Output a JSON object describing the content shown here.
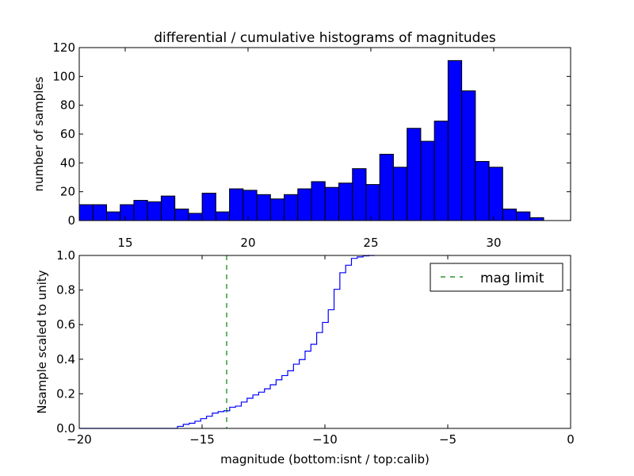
{
  "chart_data": [
    {
      "type": "bar",
      "title": "differential / cumulative histograms of magnitudes",
      "xlabel": "",
      "ylabel": "number of samples",
      "xlim": [
        13.13,
        33.13
      ],
      "ylim": [
        0,
        120
      ],
      "xticks": [
        15,
        20,
        25,
        30
      ],
      "yticks": [
        0,
        20,
        40,
        60,
        80,
        100,
        120
      ],
      "bin_start": 13.13,
      "bin_width": 0.556,
      "values": [
        11,
        11,
        6,
        11,
        14,
        13,
        17,
        8,
        5,
        19,
        6,
        22,
        21,
        18,
        15,
        18,
        22,
        27,
        23,
        26,
        36,
        25,
        46,
        37,
        64,
        55,
        69,
        111,
        90,
        41,
        37,
        8,
        6,
        2
      ],
      "color": "#0000ff"
    },
    {
      "type": "line",
      "xlabel": "magnitude (bottom:isnt / top:calib)",
      "ylabel": "Nsample scaled to unity",
      "xlim": [
        -20,
        0
      ],
      "ylim": [
        0,
        1
      ],
      "xticks": [
        -20,
        -15,
        -10,
        -5,
        0
      ],
      "xtick_labels": [
        "−20",
        "−15",
        "−10",
        "−5",
        "0"
      ],
      "yticks": [
        0,
        0.2,
        0.4,
        0.6,
        0.8,
        1.0
      ],
      "ytick_labels": [
        "0.0",
        "0.2",
        "0.4",
        "0.6",
        "0.8",
        "1.0"
      ],
      "cdf_start": -16.0,
      "cdf_bin_width": 0.236,
      "cdf_counts": [
        11,
        11,
        6,
        11,
        14,
        13,
        17,
        8,
        5,
        19,
        6,
        22,
        21,
        18,
        15,
        18,
        22,
        27,
        23,
        26,
        36,
        25,
        46,
        37,
        64,
        55,
        69,
        111,
        90,
        41,
        37,
        8,
        6,
        2
      ],
      "line_color": "#0000ff",
      "mag_limit": -14,
      "mag_limit_color": "#008000",
      "legend": {
        "label": "mag limit",
        "placement": "top-right"
      }
    }
  ]
}
